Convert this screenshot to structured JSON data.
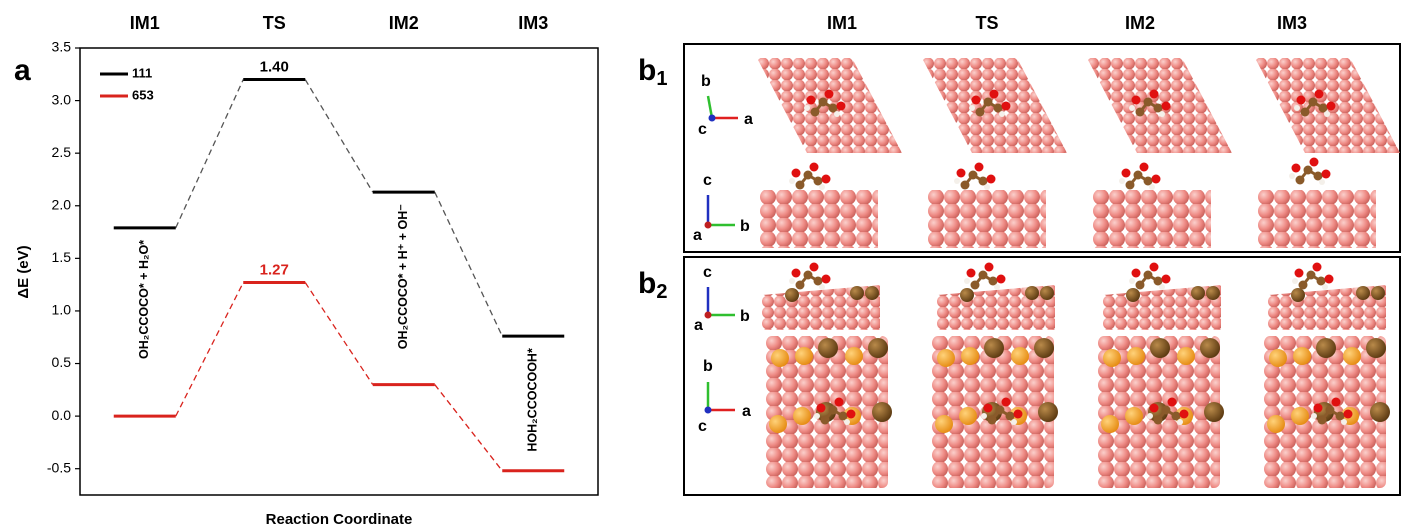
{
  "chart_data": {
    "type": "energy",
    "panel_label": "a",
    "categories": [
      "IM1",
      "TS",
      "IM2",
      "IM3"
    ],
    "ylabel": "ΔE (eV)",
    "xlabel": "Reaction Coordinate",
    "ylim": [
      -0.75,
      3.5
    ],
    "yticks": [
      -0.5,
      {
        "value": 0,
        "label": "0.0"
      },
      0.5,
      {
        "value": 1,
        "label": "1.0"
      },
      1.5,
      {
        "value": 2,
        "label": "2.0"
      },
      2.5,
      {
        "value": 3,
        "label": "3.0"
      },
      3.5
    ],
    "legend": "upper left",
    "series": [
      {
        "name": "111",
        "color": "#000000",
        "values": [
          1.79,
          3.2,
          2.13,
          0.76
        ],
        "annotation": "1.40"
      },
      {
        "name": "653",
        "color": "#d9231d",
        "values": [
          0,
          1.27,
          0.3,
          -0.52
        ],
        "annotation": "1.27"
      }
    ],
    "species": [
      "OH₂CCOCO* + H₂O*",
      null,
      "OH₂CCOCO* + H⁺ + OH⁻",
      "HOH₂CCOCOOH*"
    ]
  },
  "structures": {
    "columns": [
      "IM1",
      "TS",
      "IM2",
      "IM3"
    ],
    "panels": [
      {
        "label": "b",
        "subscript": "1",
        "axes": [
          {
            "up": "b",
            "origin": "c",
            "right": "a"
          },
          {
            "up": "c",
            "origin": "a",
            "right": "b"
          }
        ]
      },
      {
        "label": "b",
        "subscript": "2",
        "axes": [
          {
            "up": "c",
            "origin": "a",
            "right": "b"
          },
          {
            "up": "b",
            "origin": "c",
            "right": "a"
          }
        ]
      }
    ]
  }
}
